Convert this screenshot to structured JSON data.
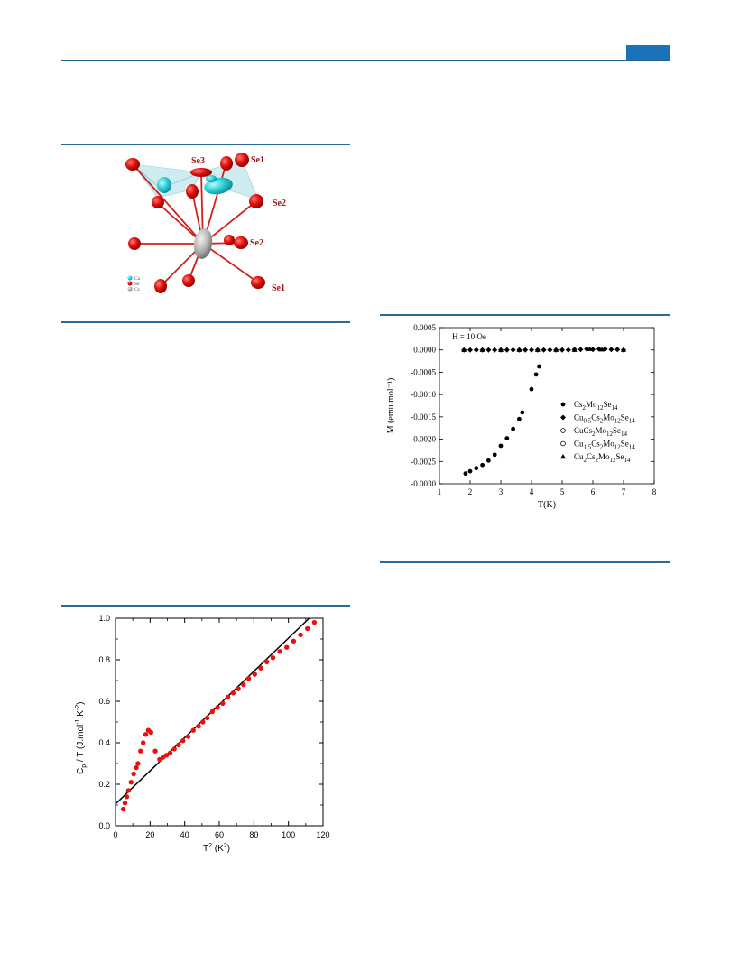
{
  "header": {
    "accent_color": "#1a73b8",
    "rule_color": "#1f5f8e"
  },
  "structure_figure": {
    "atom_labels": [
      "Se3",
      "Se1",
      "Se2",
      "Se2",
      "Se1"
    ],
    "legend": [
      "Cu",
      "Se",
      "Cs"
    ],
    "colors": {
      "Cu": "#2fd0d8",
      "Se": "#e01010",
      "Cs": "#a8a8a8",
      "polyhedron": "#bfe6ec",
      "bond": "#d02020",
      "label": "#a01515"
    }
  },
  "chart_data": [
    {
      "type": "scatter",
      "title": "",
      "annotation": "H = 10 Oe",
      "xlabel": "T(K)",
      "ylabel": "M (emu.mol⁻¹)",
      "xlim": [
        1,
        8
      ],
      "ylim": [
        -0.003,
        0.0005
      ],
      "xticks": [
        "1",
        "2",
        "3",
        "4",
        "5",
        "6",
        "7",
        "8"
      ],
      "yticks": [
        "0.0005",
        "0.0000",
        "-0.0005",
        "-0.0010",
        "-0.0015",
        "-0.0020",
        "-0.0025",
        "-0.0030"
      ],
      "legend_position": "right",
      "legend": [
        {
          "marker": "filled-circle",
          "label": [
            "Cs",
            "2",
            "Mo",
            "12",
            "Se",
            "14"
          ]
        },
        {
          "marker": "filled-diamond",
          "label": [
            "Cu",
            "0.5",
            "Cs",
            "2",
            "Mo",
            "12",
            "Se",
            "14"
          ]
        },
        {
          "marker": "open-circle",
          "label": [
            "CuCs",
            "2",
            "Mo",
            "12",
            "Se",
            "14"
          ]
        },
        {
          "marker": "open-circle",
          "label": [
            "Cu",
            "1.5",
            "Cs",
            "2",
            "Mo",
            "12",
            "Se",
            "14"
          ]
        },
        {
          "marker": "filled-triangle",
          "label": [
            "Cu",
            "2",
            "Cs",
            "2",
            "Mo",
            "12",
            "Se",
            "14"
          ]
        }
      ],
      "series": [
        {
          "name": "Cs2Mo12Se14",
          "marker": "filled-circle",
          "x": [
            1.85,
            2.0,
            2.2,
            2.4,
            2.6,
            2.8,
            3.0,
            3.2,
            3.4,
            3.6,
            3.7,
            4.0,
            4.15,
            4.25
          ],
          "y": [
            -0.00277,
            -0.00272,
            -0.00265,
            -0.00258,
            -0.00248,
            -0.00235,
            -0.00215,
            -0.00198,
            -0.00177,
            -0.00155,
            -0.0014,
            -0.00088,
            -0.00055,
            -0.00037
          ]
        },
        {
          "name": "Cu0.5Cs2Mo12Se14",
          "marker": "filled-diamond",
          "x": [
            1.8,
            2.0,
            2.2,
            2.4,
            2.6,
            2.8,
            3.0,
            3.2,
            3.4,
            3.6,
            3.8,
            4.0,
            4.2,
            4.4,
            4.6,
            4.8,
            5.0,
            5.2,
            5.4,
            5.6,
            5.8,
            6.0,
            6.2,
            6.4,
            6.6,
            6.8,
            7.0
          ],
          "y": [
            0,
            0,
            0,
            0,
            0,
            0,
            0,
            0,
            0,
            0,
            0,
            0,
            0,
            0,
            0,
            0,
            0,
            0,
            1e-05,
            1e-05,
            2e-05,
            1e-05,
            2e-05,
            2e-05,
            1e-05,
            1e-05,
            0
          ]
        },
        {
          "name": "Cu2Cs2Mo12Se14",
          "marker": "filled-triangle",
          "x": [
            1.8,
            2.4,
            3.0,
            3.6,
            4.2,
            4.8,
            5.4,
            5.9,
            6.3,
            7.0
          ],
          "y": [
            0,
            0,
            0,
            0,
            0,
            0,
            0,
            2e-05,
            1e-05,
            0
          ]
        }
      ]
    },
    {
      "type": "scatter",
      "title": "",
      "xlabel": [
        "T",
        "2",
        " (K",
        "2",
        ")"
      ],
      "ylabel": [
        "C",
        "p",
        " / T (J.mol",
        "-1",
        ".K",
        "-2",
        ")"
      ],
      "xlim": [
        0,
        120
      ],
      "ylim": [
        0,
        1.0
      ],
      "xticks": [
        "0",
        "20",
        "40",
        "60",
        "80",
        "100",
        "120"
      ],
      "yticks": [
        "0.0",
        "0.2",
        "0.4",
        "0.6",
        "0.8",
        "1.0"
      ],
      "series": [
        {
          "name": "",
          "marker": "filled-circle",
          "color": "#e81010",
          "x": [
            4.5,
            5.5,
            6.5,
            7.5,
            9,
            10.5,
            12,
            13,
            14.5,
            16,
            17.5,
            19,
            20.5,
            23,
            25.5,
            27.5,
            29.5,
            31.5,
            34,
            36.5,
            39,
            42,
            45,
            48,
            50.5,
            53,
            56,
            59,
            62,
            65,
            68,
            71,
            74,
            77,
            80.5,
            84,
            87.5,
            91,
            95,
            99,
            103,
            107,
            111,
            115
          ],
          "y": [
            0.08,
            0.11,
            0.14,
            0.17,
            0.21,
            0.25,
            0.28,
            0.3,
            0.36,
            0.4,
            0.44,
            0.46,
            0.45,
            0.36,
            0.32,
            0.33,
            0.34,
            0.35,
            0.37,
            0.39,
            0.41,
            0.43,
            0.46,
            0.48,
            0.5,
            0.52,
            0.55,
            0.57,
            0.59,
            0.62,
            0.64,
            0.66,
            0.68,
            0.71,
            0.73,
            0.76,
            0.79,
            0.81,
            0.84,
            0.86,
            0.89,
            0.92,
            0.95,
            0.98
          ]
        },
        {
          "name": "",
          "type": "line",
          "color": "#000000",
          "x": [
            0,
            112
          ],
          "y": [
            0.105,
            1.0
          ]
        }
      ]
    }
  ]
}
